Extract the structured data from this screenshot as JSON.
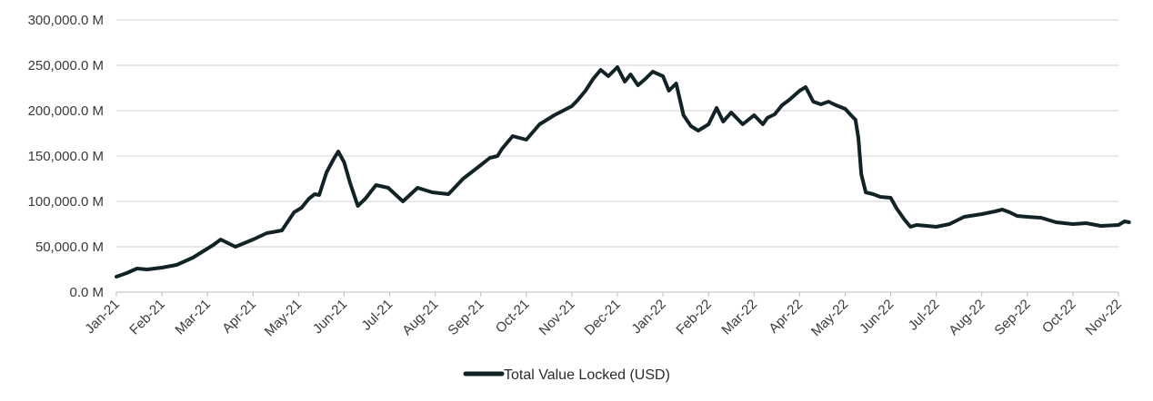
{
  "chart_data": {
    "type": "line",
    "title": "",
    "xlabel": "",
    "ylabel": "",
    "ylim": [
      0,
      300000
    ],
    "y_unit": "M (USD millions)",
    "yticks": [
      "0.0 M",
      "50,000.0 M",
      "100,000.0 M",
      "150,000.0 M",
      "200,000.0 M",
      "250,000.0 M",
      "300,000.0 M"
    ],
    "xticks": [
      "Jan-21",
      "Feb-21",
      "Mar-21",
      "Apr-21",
      "May-21",
      "Jun-21",
      "Jul-21",
      "Aug-21",
      "Sep-21",
      "Oct-21",
      "Nov-21",
      "Dec-21",
      "Jan-22",
      "Feb-22",
      "Mar-22",
      "Apr-22",
      "May-22",
      "Jun-22",
      "Jul-22",
      "Aug-22",
      "Sep-22",
      "Oct-22",
      "Nov-22"
    ],
    "grid": true,
    "legend_position": "bottom-center",
    "series": [
      {
        "name": "Total Value Locked (USD)",
        "color": "#122326",
        "x": [
          "2021-01-01",
          "2021-01-08",
          "2021-01-15",
          "2021-01-22",
          "2021-02-01",
          "2021-02-10",
          "2021-02-20",
          "2021-03-01",
          "2021-03-05",
          "2021-03-10",
          "2021-03-20",
          "2021-04-01",
          "2021-04-10",
          "2021-04-20",
          "2021-04-28",
          "2021-05-03",
          "2021-05-08",
          "2021-05-12",
          "2021-05-15",
          "2021-05-20",
          "2021-05-25",
          "2021-05-28",
          "2021-06-01",
          "2021-06-05",
          "2021-06-10",
          "2021-06-15",
          "2021-06-22",
          "2021-06-30",
          "2021-07-10",
          "2021-07-20",
          "2021-07-30",
          "2021-08-10",
          "2021-08-20",
          "2021-09-01",
          "2021-09-07",
          "2021-09-12",
          "2021-09-15",
          "2021-09-22",
          "2021-10-01",
          "2021-10-10",
          "2021-10-20",
          "2021-11-01",
          "2021-11-05",
          "2021-11-10",
          "2021-11-15",
          "2021-11-20",
          "2021-11-25",
          "2021-12-01",
          "2021-12-06",
          "2021-12-10",
          "2021-12-15",
          "2021-12-20",
          "2021-12-25",
          "2022-01-01",
          "2022-01-05",
          "2022-01-10",
          "2022-01-15",
          "2022-01-20",
          "2022-01-25",
          "2022-02-01",
          "2022-02-06",
          "2022-02-10",
          "2022-02-15",
          "2022-02-22",
          "2022-03-01",
          "2022-03-07",
          "2022-03-10",
          "2022-03-15",
          "2022-03-20",
          "2022-03-25",
          "2022-04-01",
          "2022-04-05",
          "2022-04-10",
          "2022-04-15",
          "2022-04-20",
          "2022-04-25",
          "2022-05-01",
          "2022-05-05",
          "2022-05-08",
          "2022-05-10",
          "2022-05-12",
          "2022-05-15",
          "2022-05-20",
          "2022-05-25",
          "2022-06-01",
          "2022-06-05",
          "2022-06-10",
          "2022-06-14",
          "2022-06-18",
          "2022-06-25",
          "2022-07-01",
          "2022-07-10",
          "2022-07-20",
          "2022-08-01",
          "2022-08-10",
          "2022-08-15",
          "2022-08-20",
          "2022-08-25",
          "2022-09-01",
          "2022-09-10",
          "2022-09-20",
          "2022-10-01",
          "2022-10-10",
          "2022-10-20",
          "2022-11-01",
          "2022-11-05",
          "2022-11-08"
        ],
        "values": [
          17000,
          21000,
          26000,
          25000,
          27000,
          30000,
          38000,
          48000,
          52000,
          58000,
          50000,
          58000,
          65000,
          68000,
          88000,
          93000,
          103000,
          108000,
          107000,
          132000,
          147000,
          155000,
          143000,
          120000,
          95000,
          103000,
          118000,
          115000,
          100000,
          115000,
          110000,
          108000,
          125000,
          140000,
          148000,
          150000,
          158000,
          172000,
          168000,
          185000,
          195000,
          205000,
          212000,
          222000,
          235000,
          245000,
          238000,
          248000,
          232000,
          240000,
          228000,
          235000,
          243000,
          238000,
          222000,
          230000,
          195000,
          183000,
          178000,
          185000,
          203000,
          188000,
          198000,
          185000,
          195000,
          185000,
          192000,
          196000,
          206000,
          212000,
          222000,
          226000,
          210000,
          207000,
          210000,
          206000,
          202000,
          195000,
          190000,
          170000,
          130000,
          110000,
          108000,
          105000,
          104000,
          92000,
          80000,
          72000,
          74000,
          73000,
          72000,
          75000,
          83000,
          86000,
          89000,
          91000,
          88000,
          84000,
          83000,
          82000,
          77000,
          75000,
          76000,
          73000,
          74000,
          78000,
          77000
        ]
      }
    ]
  }
}
